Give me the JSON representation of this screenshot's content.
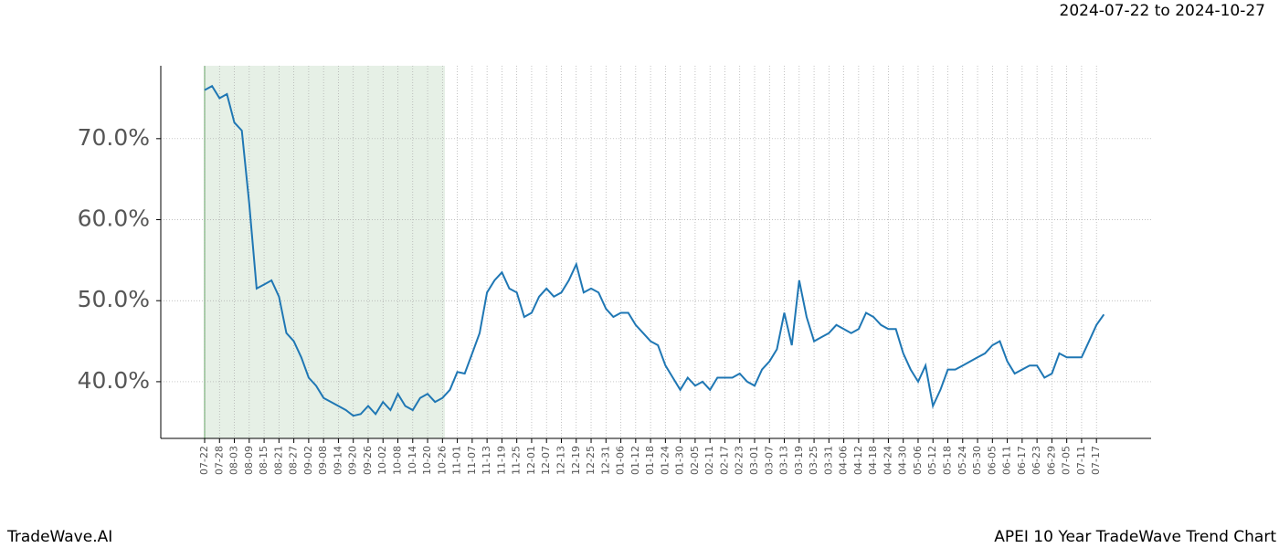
{
  "chart_data": {
    "type": "line",
    "range_label": "2024-07-22 to 2024-10-27",
    "footer_left": "TradeWave.AI",
    "footer_right": "APEI 10 Year TradeWave Trend Chart",
    "categories": [
      "07-22",
      null,
      "07-28",
      null,
      "08-03",
      null,
      "08-09",
      null,
      "08-15",
      null,
      "08-21",
      null,
      "08-27",
      null,
      "09-02",
      null,
      "09-08",
      null,
      "09-14",
      null,
      "09-20",
      null,
      "09-26",
      null,
      "10-02",
      null,
      "10-08",
      null,
      "10-14",
      null,
      "10-20",
      null,
      "10-26",
      null,
      "11-01",
      null,
      "11-07",
      null,
      "11-13",
      null,
      "11-19",
      null,
      "11-25",
      null,
      "12-01",
      null,
      "12-07",
      null,
      "12-13",
      null,
      "12-19",
      null,
      "12-25",
      null,
      "12-31",
      null,
      "01-06",
      null,
      "01-12",
      null,
      "01-18",
      null,
      "01-24",
      null,
      "01-30",
      null,
      "02-05",
      null,
      "02-11",
      null,
      "02-17",
      null,
      "02-23",
      null,
      "03-01",
      null,
      "03-07",
      null,
      "03-13",
      null,
      "03-19",
      null,
      "03-25",
      null,
      "03-31",
      null,
      "04-06",
      null,
      "04-12",
      null,
      "04-18",
      null,
      "04-24",
      null,
      "04-30",
      null,
      "05-06",
      null,
      "05-12",
      null,
      "05-18",
      null,
      "05-24",
      null,
      "05-30",
      null,
      "06-05",
      null,
      "06-11",
      null,
      "06-17",
      null,
      "06-23",
      null,
      "06-29",
      null,
      "07-05",
      null,
      "07-11",
      null,
      "07-17",
      null
    ],
    "series": [
      {
        "color": "#1f77b4",
        "values": [
          76,
          76.5,
          75,
          75.5,
          72,
          71,
          62,
          51.5,
          52,
          52.5,
          50.5,
          46,
          45,
          43,
          40.5,
          39.5,
          38,
          37.5,
          37,
          36.5,
          35.8,
          36,
          37,
          36,
          37.5,
          36.5,
          38.5,
          37,
          36.5,
          38,
          38.5,
          37.5,
          38,
          39,
          41.2,
          41,
          43.5,
          46,
          51,
          52.5,
          53.5,
          51.5,
          51,
          48,
          48.5,
          50.5,
          51.5,
          50.5,
          51,
          52.5,
          54.5,
          51,
          51.5,
          51,
          49,
          48,
          48.5,
          48.5,
          47,
          46,
          45,
          44.5,
          42,
          40.5,
          39,
          40.5,
          39.5,
          40,
          39,
          40.5,
          40.5,
          40.5,
          41,
          40,
          39.5,
          41.5,
          42.5,
          44,
          48.5,
          44.5,
          52.5,
          48,
          45,
          45.5,
          46,
          47,
          46.5,
          46,
          46.5,
          48.5,
          48,
          47,
          46.5,
          46.5,
          43.5,
          41.5,
          40,
          42,
          37,
          39,
          41.5,
          41.5,
          42,
          42.5,
          43,
          43.5,
          44.5,
          45,
          42.5,
          41,
          41.5,
          42,
          42,
          40.5,
          41,
          43.5,
          43,
          43,
          43,
          45,
          47,
          48.3
        ]
      }
    ],
    "ylim": [
      33,
      79
    ],
    "yticks": [
      {
        "value": 40,
        "label": "40.0%"
      },
      {
        "value": 50,
        "label": "50.0%"
      },
      {
        "value": 60,
        "label": "60.0%"
      },
      {
        "value": 70,
        "label": "70.0%"
      }
    ],
    "grid": true,
    "highlight_color": "#e6f0e6"
  }
}
